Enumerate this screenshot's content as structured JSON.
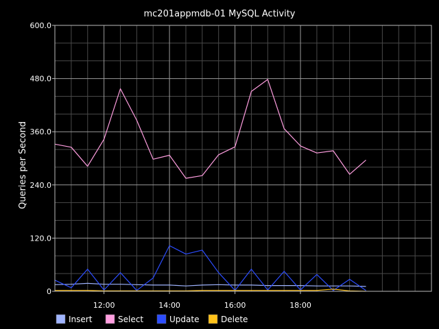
{
  "chart_data": {
    "type": "line",
    "title": "mc201appmdb-01 MySQL Activity",
    "xlabel": "",
    "ylabel": "Queries per Second",
    "ylim": [
      0,
      600
    ],
    "y_ticks": [
      "0",
      "120.0",
      "240.0",
      "360.0",
      "480.0",
      "600.0"
    ],
    "y_tick_values": [
      0,
      120,
      240,
      360,
      480,
      600
    ],
    "x_range": [
      10.5,
      22.0
    ],
    "x_ticks": [
      "12:00",
      "14:00",
      "16:00",
      "18:00"
    ],
    "x_tick_values": [
      12,
      14,
      16,
      18
    ],
    "grid": true,
    "legend_position": "bottom",
    "x": [
      10.5,
      11.0,
      11.5,
      12.0,
      12.5,
      13.0,
      13.5,
      14.0,
      14.5,
      15.0,
      15.5,
      16.0,
      16.5,
      17.0,
      17.5,
      18.0,
      18.5,
      19.0,
      19.5,
      20.0
    ],
    "series": [
      {
        "name": "Insert",
        "color": "#9fb4ff",
        "values": [
          15,
          16,
          18,
          16,
          16,
          15,
          14,
          14,
          12,
          14,
          15,
          14,
          14,
          13,
          13,
          13,
          12,
          12,
          12,
          11
        ]
      },
      {
        "name": "Select",
        "color": "#ff9ee0",
        "values": [
          332,
          325,
          282,
          343,
          457,
          386,
          298,
          307,
          255,
          261,
          308,
          326,
          451,
          478,
          367,
          328,
          312,
          317,
          264,
          296
        ]
      },
      {
        "name": "Update",
        "color": "#2c4dff",
        "values": [
          25,
          8,
          50,
          3,
          42,
          2,
          30,
          103,
          84,
          93,
          42,
          2,
          50,
          3,
          45,
          3,
          38,
          2,
          27,
          2
        ]
      },
      {
        "name": "Delete",
        "color": "#ffc21a",
        "values": [
          2,
          2,
          2,
          1,
          1,
          1,
          1,
          1,
          1,
          2,
          2,
          2,
          2,
          2,
          2,
          2,
          2,
          5,
          1,
          0
        ]
      }
    ]
  }
}
